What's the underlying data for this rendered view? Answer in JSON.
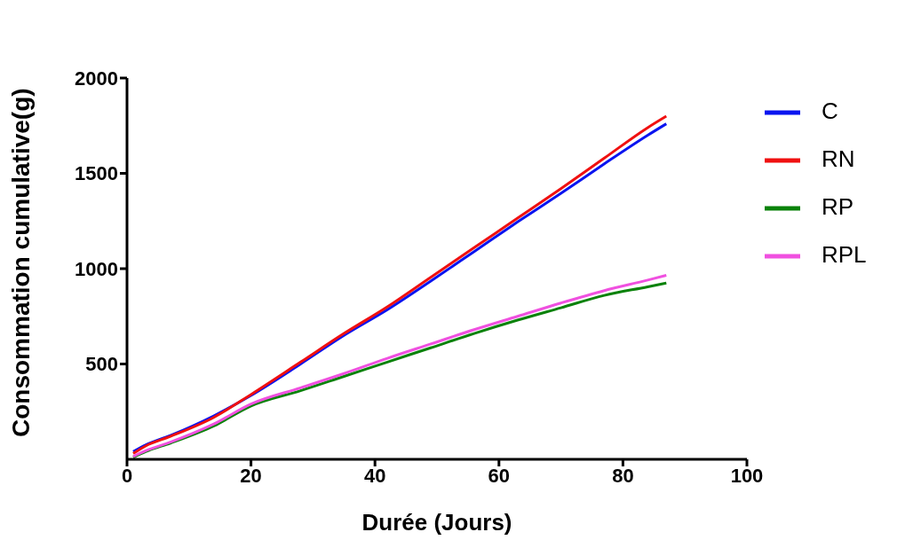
{
  "chart_data": {
    "type": "line",
    "xlabel": "Durée (Jours)",
    "ylabel": "Consommation cumulative(g)",
    "xlim": [
      0,
      100
    ],
    "xticks": [
      0,
      20,
      40,
      60,
      80,
      100
    ],
    "ylim": [
      0,
      2000
    ],
    "yticks": [
      500,
      1000,
      1500,
      2000
    ],
    "x": [
      1,
      3,
      7,
      14,
      20,
      28,
      35,
      42,
      49,
      56,
      63,
      70,
      77,
      84,
      87
    ],
    "series": [
      {
        "name": "C",
        "color": "#0a14f0",
        "values": [
          40,
          75,
          125,
          228,
          335,
          500,
          650,
          785,
          935,
          1090,
          1245,
          1395,
          1550,
          1700,
          1760
        ]
      },
      {
        "name": "RN",
        "color": "#f01010",
        "values": [
          30,
          70,
          120,
          220,
          340,
          510,
          660,
          800,
          955,
          1110,
          1265,
          1420,
          1580,
          1740,
          1800
        ]
      },
      {
        "name": "RP",
        "color": "#0a820a",
        "values": [
          10,
          40,
          85,
          175,
          280,
          360,
          435,
          510,
          585,
          660,
          730,
          795,
          860,
          905,
          925
        ]
      },
      {
        "name": "RPL",
        "color": "#f050e0",
        "values": [
          15,
          45,
          90,
          185,
          290,
          375,
          450,
          530,
          605,
          680,
          750,
          820,
          885,
          940,
          965
        ]
      }
    ],
    "legend": "right",
    "grid": false,
    "marker": "none",
    "line_style": "solid"
  }
}
